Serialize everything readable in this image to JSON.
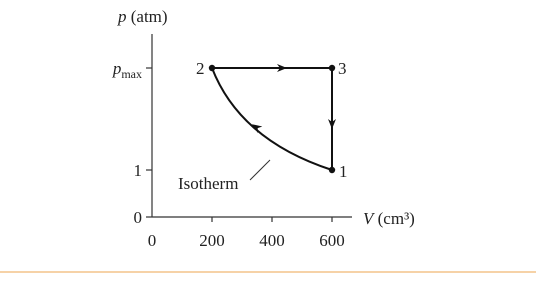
{
  "axes": {
    "y_label": {
      "symbol": "p",
      "unit": "(atm)"
    },
    "x_label": {
      "symbol": "V",
      "unit": "(cm³)"
    },
    "y_ticks": [
      "0",
      "1"
    ],
    "y_tick_max": {
      "symbol": "p",
      "subscript": "max"
    },
    "x_ticks": [
      "0",
      "200",
      "400",
      "600"
    ]
  },
  "points": [
    "1",
    "2",
    "3"
  ],
  "annotation": "Isotherm"
}
